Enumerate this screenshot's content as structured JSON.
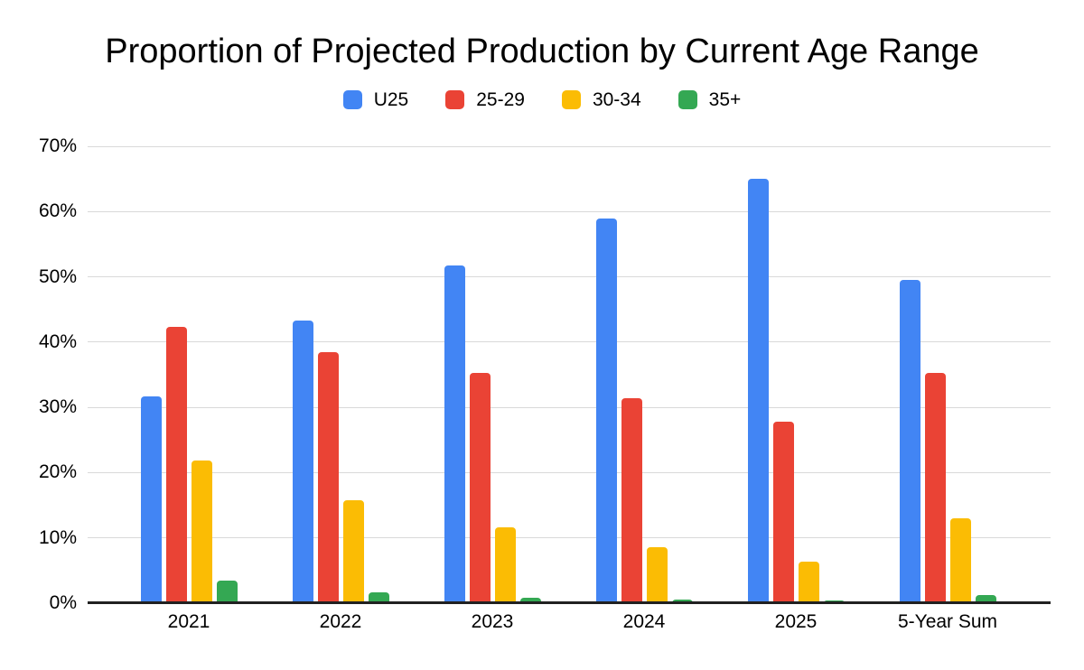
{
  "page": {
    "background": "#ffffff"
  },
  "chart_data": {
    "type": "bar",
    "title": "Proportion of Projected Production by Current Age Range",
    "xlabel": "",
    "ylabel": "",
    "legend_position": "top",
    "grid": true,
    "gridline_color": "#d9d9d9",
    "axis_line_color": "#212121",
    "text_color": "#000000",
    "categories": [
      "2021",
      "2022",
      "2023",
      "2024",
      "2025",
      "5-Year Sum"
    ],
    "series": [
      {
        "name": "U25",
        "color": "#4285F4",
        "values": [
          31.7,
          43.3,
          51.7,
          58.9,
          65.0,
          49.5
        ]
      },
      {
        "name": "25-29",
        "color": "#EA4335",
        "values": [
          42.3,
          38.4,
          35.3,
          31.4,
          27.8,
          35.3
        ]
      },
      {
        "name": "30-34",
        "color": "#FBBC04",
        "values": [
          21.9,
          15.8,
          11.6,
          8.6,
          6.4,
          13.0
        ]
      },
      {
        "name": "35+",
        "color": "#34A853",
        "values": [
          3.5,
          1.6,
          0.8,
          0.6,
          0.4,
          1.3
        ]
      }
    ],
    "y_axis": {
      "min": 0,
      "max": 70,
      "step": 10,
      "tick_labels": [
        "0%",
        "10%",
        "20%",
        "30%",
        "40%",
        "50%",
        "60%",
        "70%"
      ]
    }
  }
}
